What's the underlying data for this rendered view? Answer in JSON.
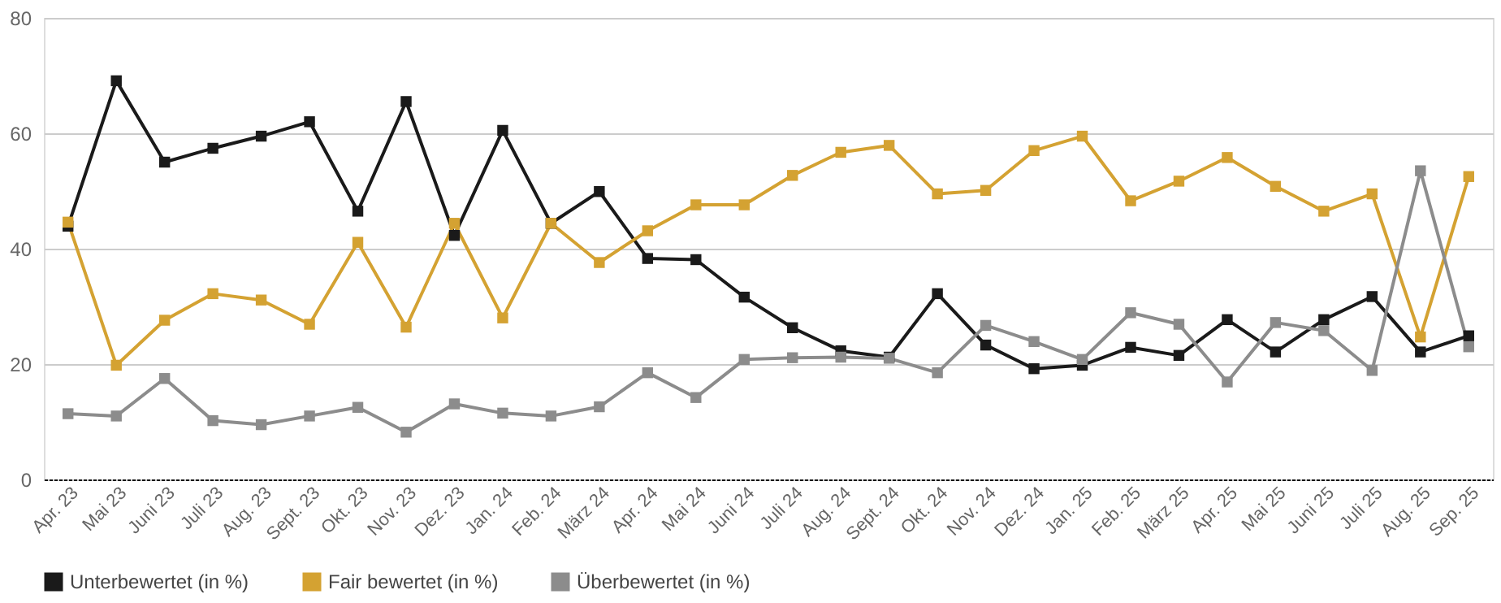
{
  "chart_data": {
    "type": "line",
    "categories": [
      "Apr. 23",
      "Mai 23",
      "Juni 23",
      "Juli 23",
      "Aug. 23",
      "Sept. 23",
      "Okt. 23",
      "Nov. 23",
      "Dez. 23",
      "Jan. 24",
      "Feb. 24",
      "März 24",
      "Apr. 24",
      "Mai 24",
      "Juni 24",
      "Juli 24",
      "Aug. 24",
      "Sept. 24",
      "Okt. 24",
      "Nov. 24",
      "Dez. 24",
      "Jan. 25",
      "Feb. 25",
      "März 25",
      "Apr. 25",
      "Mai 25",
      "Juni 25",
      "Juli 25",
      "Aug. 25",
      "Sep. 25"
    ],
    "series": [
      {
        "name": "Unterbewertet (in %)",
        "color": "#1a1a1a",
        "values": [
          43.9,
          69.1,
          55.0,
          57.4,
          59.5,
          62.0,
          46.5,
          65.5,
          42.3,
          60.5,
          44.4,
          49.9,
          38.3,
          38.1,
          31.6,
          26.3,
          22.3,
          21.2,
          32.2,
          23.3,
          19.2,
          19.8,
          22.9,
          21.5,
          27.7,
          22.1,
          27.7,
          31.7,
          22.1,
          24.9
        ]
      },
      {
        "name": "Fair bewertet (in %)",
        "color": "#d4a232",
        "values": [
          44.6,
          19.8,
          27.6,
          32.2,
          31.1,
          26.9,
          41.1,
          26.4,
          44.4,
          28.0,
          44.4,
          37.6,
          43.1,
          47.6,
          47.6,
          52.7,
          56.7,
          57.9,
          49.5,
          50.1,
          57.0,
          59.5,
          48.3,
          51.7,
          55.8,
          50.8,
          46.5,
          49.5,
          24.7,
          52.5
        ]
      },
      {
        "name": "Überbewertet (in %)",
        "color": "#8c8c8c",
        "values": [
          11.4,
          11.0,
          17.5,
          10.2,
          9.5,
          11.0,
          12.5,
          8.2,
          13.1,
          11.5,
          11.0,
          12.6,
          18.5,
          14.2,
          20.8,
          21.1,
          21.2,
          21.0,
          18.5,
          26.7,
          23.9,
          20.8,
          28.9,
          26.9,
          16.9,
          27.2,
          25.8,
          18.9,
          53.5,
          23.0
        ]
      }
    ],
    "ylim": [
      0,
      80
    ],
    "yticks": [
      0,
      20,
      40,
      60,
      80
    ],
    "grid": "y",
    "legend": "bottom",
    "marker": "square",
    "line_style": "solid"
  }
}
